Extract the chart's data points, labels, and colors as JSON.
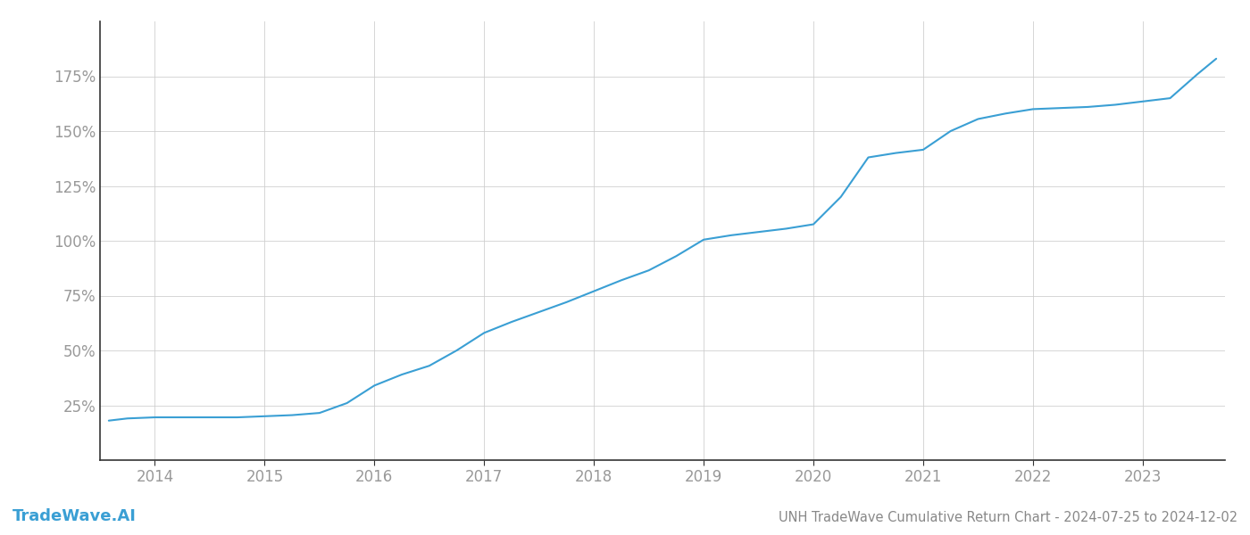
{
  "title": "UNH TradeWave Cumulative Return Chart - 2024-07-25 to 2024-12-02",
  "watermark": "TradeWave.AI",
  "line_color": "#3a9fd4",
  "background_color": "#ffffff",
  "grid_color": "#cccccc",
  "text_color": "#888888",
  "x_values": [
    2013.58,
    2013.75,
    2014.0,
    2014.25,
    2014.5,
    2014.75,
    2015.0,
    2015.25,
    2015.5,
    2015.75,
    2016.0,
    2016.25,
    2016.5,
    2016.75,
    2017.0,
    2017.25,
    2017.5,
    2017.75,
    2018.0,
    2018.25,
    2018.5,
    2018.75,
    2019.0,
    2019.25,
    2019.5,
    2019.75,
    2020.0,
    2020.25,
    2020.5,
    2020.75,
    2021.0,
    2021.25,
    2021.5,
    2021.75,
    2022.0,
    2022.25,
    2022.5,
    2022.75,
    2023.0,
    2023.25,
    2023.5,
    2023.67
  ],
  "y_values": [
    18.0,
    19.0,
    19.5,
    19.5,
    19.5,
    19.5,
    20.0,
    20.5,
    21.5,
    26.0,
    34.0,
    39.0,
    43.0,
    50.0,
    58.0,
    63.0,
    67.5,
    72.0,
    77.0,
    82.0,
    86.5,
    93.0,
    100.5,
    102.5,
    104.0,
    105.5,
    107.5,
    120.0,
    138.0,
    140.0,
    141.5,
    150.0,
    155.5,
    158.0,
    160.0,
    160.5,
    161.0,
    162.0,
    163.5,
    165.0,
    176.0,
    183.0
  ],
  "x_ticks": [
    2014,
    2015,
    2016,
    2017,
    2018,
    2019,
    2020,
    2021,
    2022,
    2023
  ],
  "y_ticks": [
    25,
    50,
    75,
    100,
    125,
    150,
    175
  ],
  "ylim": [
    0,
    200
  ],
  "xlim": [
    2013.5,
    2023.75
  ],
  "line_width": 1.5,
  "figsize": [
    14.0,
    6.0
  ],
  "dpi": 100,
  "title_fontsize": 10.5,
  "watermark_fontsize": 13,
  "tick_fontsize": 12,
  "tick_color": "#999999",
  "bottom_text_color": "#888888",
  "watermark_color": "#3a9fd4",
  "left_spine_color": "#333333",
  "bottom_spine_color": "#333333",
  "grid_alpha": 0.8
}
